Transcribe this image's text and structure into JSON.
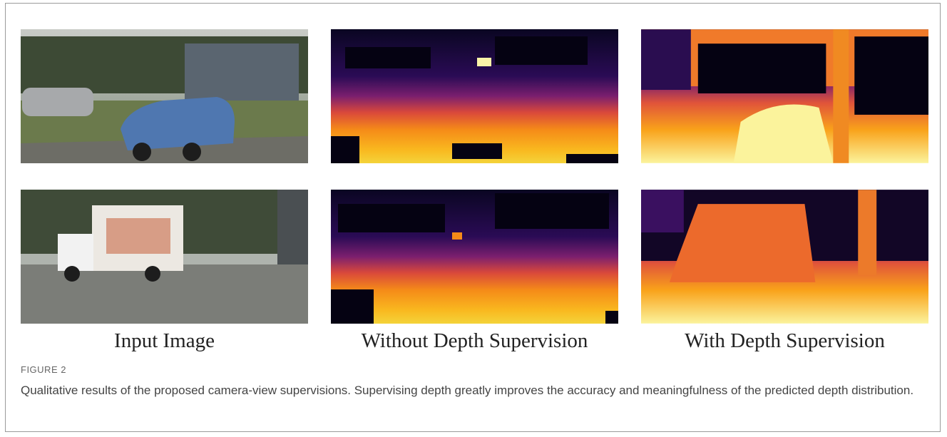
{
  "figure": {
    "column_labels": [
      "Input Image",
      "Without Depth Supervision",
      "With Depth Supervision"
    ],
    "label": "FIGURE 2",
    "caption": "Qualitative results of the proposed camera-view supervisions. Supervising depth greatly improves the accuracy and meaningfulness of the predicted depth distribution."
  }
}
